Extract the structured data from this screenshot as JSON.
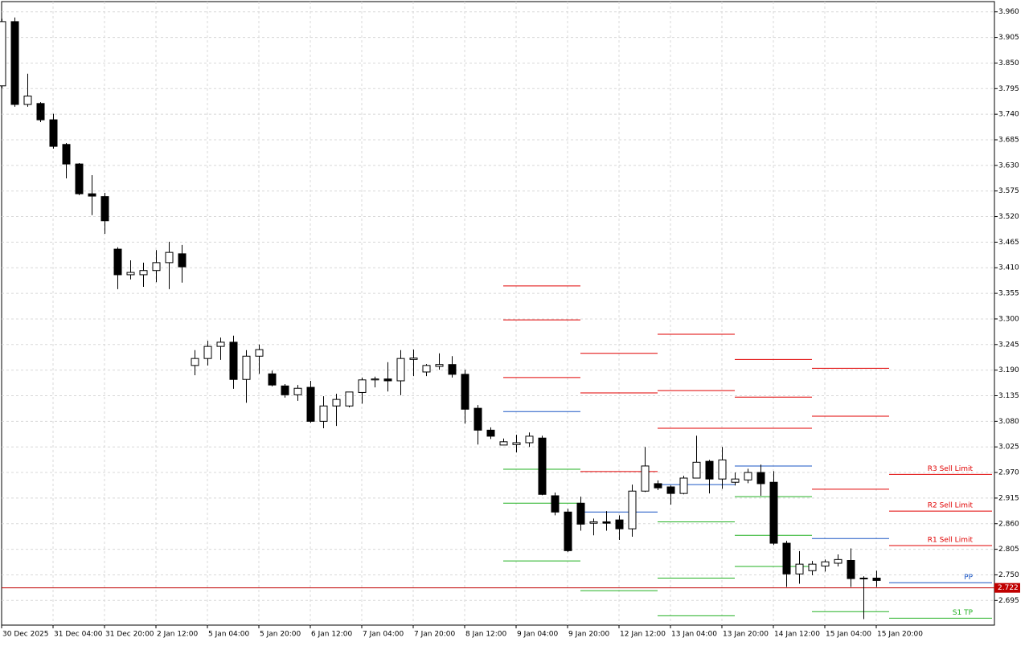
{
  "chart_data": {
    "type": "candlestick",
    "categories": [
      "30 Dec 2025",
      null,
      null,
      null,
      "31 Dec 04:00",
      null,
      null,
      null,
      "31 Dec 20:00",
      null,
      null,
      null,
      "2 Jan 12:00",
      null,
      null,
      null,
      "5 Jan 04:00",
      null,
      null,
      null,
      "5 Jan 20:00",
      null,
      null,
      null,
      "6 Jan 12:00",
      null,
      null,
      null,
      "7 Jan 04:00",
      null,
      null,
      null,
      "7 Jan 20:00",
      null,
      null,
      null,
      "8 Jan 12:00",
      null,
      null,
      null,
      "9 Jan 04:00",
      null,
      null,
      null,
      "9 Jan 20:00",
      null,
      null,
      null,
      "12 Jan 12:00",
      null,
      null,
      null,
      "13 Jan 04:00",
      null,
      null,
      null,
      "13 Jan 20:00",
      null,
      null,
      null,
      "14 Jan 12:00",
      null,
      null,
      null,
      "15 Jan 04:00",
      null,
      null,
      null,
      "15 Jan 20:00"
    ],
    "open": [
      3.801,
      3.939,
      3.761,
      3.763,
      3.728,
      3.675,
      3.633,
      3.569,
      3.563,
      3.45,
      3.395,
      3.395,
      3.404,
      3.421,
      3.44,
      3.2,
      3.215,
      3.241,
      3.25,
      3.17,
      3.22,
      3.182,
      3.156,
      3.137,
      3.153,
      3.08,
      3.113,
      3.113,
      3.142,
      3.169,
      3.171,
      3.167,
      3.213,
      3.186,
      3.198,
      3.202,
      3.181,
      3.108,
      3.061,
      3.029,
      3.03,
      3.034,
      3.044,
      2.92,
      2.885,
      2.904,
      2.861,
      2.864,
      2.868,
      2.849,
      2.93,
      2.946,
      2.939,
      2.925,
      2.958,
      2.994,
      2.956,
      2.949,
      2.954,
      2.97,
      2.949,
      2.818,
      2.752,
      2.759,
      2.769,
      2.775,
      2.781,
      2.743,
      2.743
    ],
    "high": [
      3.945,
      3.948,
      3.827,
      3.766,
      3.741,
      3.678,
      3.635,
      3.609,
      3.571,
      3.454,
      3.426,
      3.421,
      3.448,
      3.466,
      3.459,
      3.233,
      3.253,
      3.26,
      3.264,
      3.233,
      3.245,
      3.189,
      3.16,
      3.158,
      3.167,
      3.134,
      3.139,
      3.143,
      3.174,
      3.176,
      3.207,
      3.233,
      3.234,
      3.203,
      3.226,
      3.22,
      3.191,
      3.115,
      3.067,
      3.043,
      3.051,
      3.056,
      3.049,
      2.927,
      2.892,
      2.918,
      2.871,
      2.887,
      2.878,
      2.944,
      3.025,
      2.953,
      2.942,
      2.963,
      3.049,
      2.997,
      3.025,
      2.97,
      2.978,
      2.987,
      2.973,
      2.823,
      2.801,
      2.78,
      2.783,
      2.794,
      2.807,
      2.747,
      2.759
    ],
    "low": [
      3.795,
      3.756,
      3.756,
      3.723,
      3.666,
      3.602,
      3.566,
      3.523,
      3.483,
      3.364,
      3.385,
      3.369,
      3.379,
      3.364,
      3.378,
      3.179,
      3.2,
      3.212,
      3.15,
      3.12,
      3.182,
      3.155,
      3.131,
      3.124,
      3.077,
      3.065,
      3.07,
      3.11,
      3.118,
      3.153,
      3.144,
      3.136,
      3.177,
      3.177,
      3.191,
      3.174,
      3.075,
      3.03,
      3.042,
      3.029,
      3.013,
      3.025,
      2.921,
      2.878,
      2.799,
      2.845,
      2.835,
      2.845,
      2.825,
      2.832,
      2.928,
      2.932,
      2.901,
      2.923,
      2.958,
      2.925,
      2.935,
      2.942,
      2.947,
      2.92,
      2.814,
      2.724,
      2.731,
      2.749,
      2.757,
      2.768,
      2.724,
      2.655,
      2.724
    ],
    "close": [
      3.939,
      3.761,
      3.779,
      3.728,
      3.671,
      3.633,
      3.569,
      3.564,
      3.511,
      3.395,
      3.4,
      3.404,
      3.421,
      3.443,
      3.412,
      3.215,
      3.241,
      3.25,
      3.17,
      3.22,
      3.234,
      3.158,
      3.137,
      3.151,
      3.08,
      3.113,
      3.127,
      3.143,
      3.169,
      3.171,
      3.167,
      3.215,
      3.216,
      3.2,
      3.202,
      3.181,
      3.106,
      3.061,
      3.048,
      3.036,
      3.034,
      3.048,
      2.923,
      2.885,
      2.802,
      2.859,
      2.864,
      2.861,
      2.849,
      2.93,
      2.984,
      2.937,
      2.925,
      2.958,
      2.992,
      2.956,
      2.997,
      2.956,
      2.97,
      2.946,
      2.818,
      2.752,
      2.773,
      2.773,
      2.778,
      2.783,
      2.742,
      2.743,
      2.738
    ],
    "up_color": "#ffffff",
    "down_color": "#000000",
    "outline_color": "#000000",
    "pivot_start": [
      39,
      45,
      51,
      57,
      63,
      69
    ],
    "pivot_levels": [
      {
        "color": "#e00000",
        "label": "R3 Sell Limit",
        "values": [
          3.371,
          3.226,
          3.267,
          3.213,
          3.194,
          2.966
        ]
      },
      {
        "color": "#e00000",
        "label": "R2 Sell Limit",
        "values": [
          3.298,
          3.141,
          3.146,
          3.132,
          3.091,
          2.887
        ]
      },
      {
        "color": "#e00000",
        "label": "R1 Sell Limit",
        "values": [
          3.174,
          2.972,
          3.065,
          3.065,
          2.934,
          2.813
        ]
      },
      {
        "color": "#1a56c4",
        "label": "PP",
        "values": [
          3.101,
          2.885,
          2.944,
          2.984,
          2.828,
          2.733
        ]
      },
      {
        "color": "#22b022",
        "label": "S1 TP",
        "values": [
          2.977,
          2.716,
          2.864,
          2.918,
          2.671,
          2.657
        ]
      },
      {
        "color": "#22b022",
        "values": [
          2.904,
          null,
          2.743,
          2.835,
          null,
          null
        ]
      },
      {
        "color": "#22b022",
        "values": [
          2.78,
          null,
          2.662,
          2.768,
          null,
          null
        ]
      }
    ],
    "current_price": 2.722,
    "current_price_color": "#c00000",
    "ylim": [
      2.642,
      3.982
    ],
    "yticks": [
      {
        "value": 3.96,
        "label": "3.960"
      },
      {
        "value": 3.905,
        "label": "3.905"
      },
      {
        "value": 3.85,
        "label": "3.850"
      },
      {
        "value": 3.795,
        "label": "3.795"
      },
      {
        "value": 3.74,
        "label": "3.740"
      },
      {
        "value": 3.685,
        "label": "3.685"
      },
      {
        "value": 3.63,
        "label": "3.630"
      },
      {
        "value": 3.575,
        "label": "3.575"
      },
      {
        "value": 3.52,
        "label": "3.520"
      },
      {
        "value": 3.465,
        "label": "3.465"
      },
      {
        "value": 3.41,
        "label": "3.410"
      },
      {
        "value": 3.355,
        "label": "3.355"
      },
      {
        "value": 3.3,
        "label": "3.300"
      },
      {
        "value": 3.245,
        "label": "3.245"
      },
      {
        "value": 3.19,
        "label": "3.190"
      },
      {
        "value": 3.135,
        "label": "3.135"
      },
      {
        "value": 3.08,
        "label": "3.080"
      },
      {
        "value": 3.025,
        "label": "3.025"
      },
      {
        "value": 2.97,
        "label": "2.970"
      },
      {
        "value": 2.915,
        "label": "2.915"
      },
      {
        "value": 2.86,
        "label": "2.860"
      },
      {
        "value": 2.805,
        "label": "2.805"
      },
      {
        "value": 2.75,
        "label": "2.750"
      },
      {
        "value": 2.695,
        "label": "2.695"
      }
    ],
    "grid": true
  }
}
